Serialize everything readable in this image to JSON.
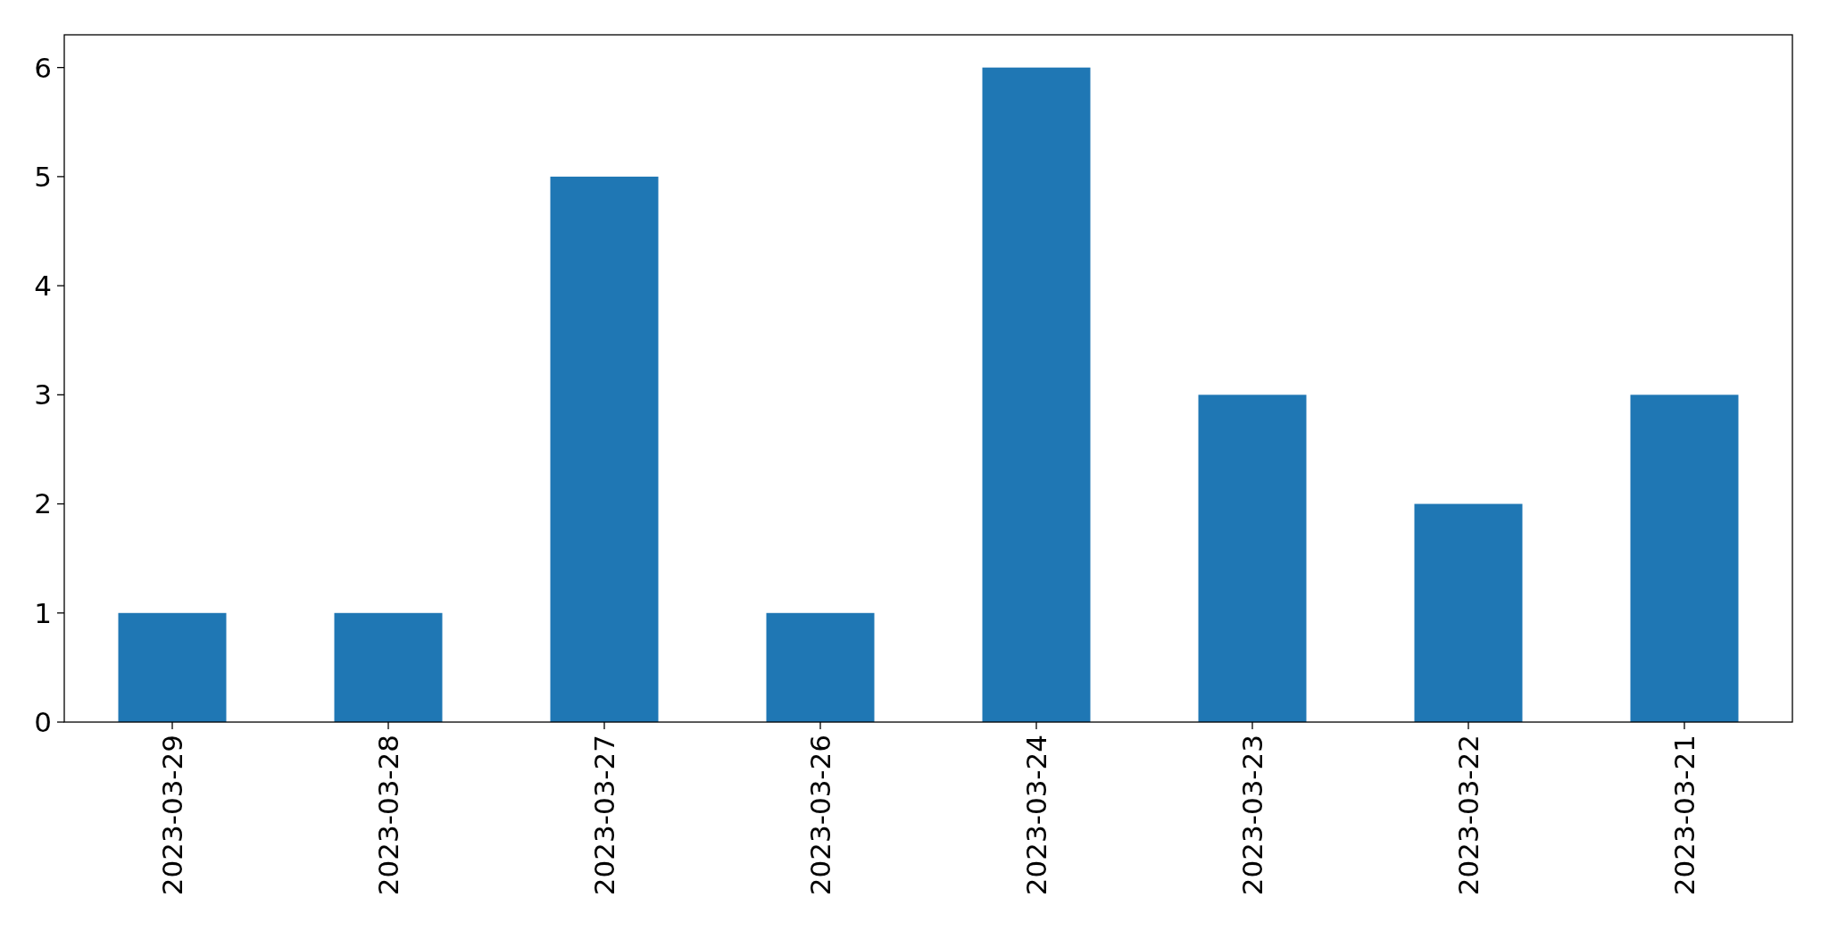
{
  "chart_data": {
    "type": "bar",
    "categories": [
      "2023-03-29",
      "2023-03-28",
      "2023-03-27",
      "2023-03-26",
      "2023-03-24",
      "2023-03-23",
      "2023-03-22",
      "2023-03-21"
    ],
    "values": [
      1,
      1,
      5,
      1,
      6,
      3,
      2,
      3
    ],
    "color": "#1f77b4",
    "ylim": [
      0,
      6.3
    ],
    "yticks": [
      0,
      1,
      2,
      3,
      4,
      5,
      6
    ],
    "grid": false
  }
}
